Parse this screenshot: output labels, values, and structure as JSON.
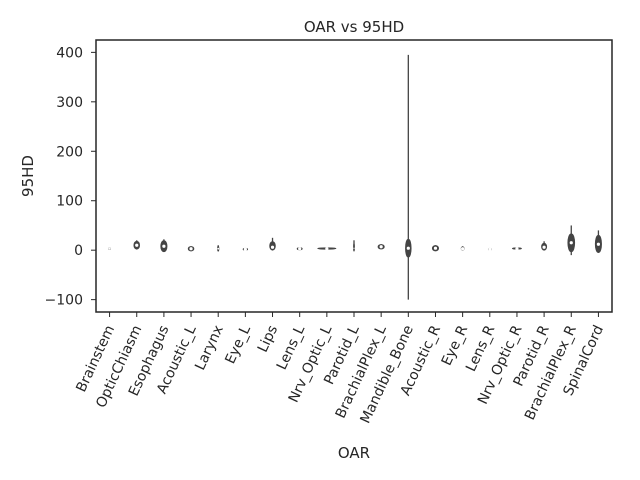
{
  "chart_data": {
    "type": "violin",
    "title": "OAR vs 95HD",
    "xlabel": "OAR",
    "ylabel": "95HD",
    "ylim": [
      -125,
      425
    ],
    "yticks": [
      -100,
      0,
      100,
      200,
      300,
      400
    ],
    "ytick_labels": [
      "−100",
      "0",
      "100",
      "200",
      "300",
      "400"
    ],
    "grid": false,
    "color": "#444444",
    "categories": [
      "Brainstem",
      "OpticChiasm",
      "Esophagus",
      "Acoustic_L",
      "Larynx",
      "Eye_L",
      "Lips",
      "Lens_L",
      "Nrv_Optic_L",
      "Parotid_L",
      "BrachialPlex_L",
      "Mandible_Bone",
      "Acoustic_R",
      "Eye_R",
      "Lens_R",
      "Nrv_Optic_R",
      "Parotid_R",
      "BrachialPlex_R",
      "SpinalCord"
    ],
    "violins": [
      {
        "min": 1,
        "max": 5,
        "median": 3,
        "width": 0.15
      },
      {
        "min": 2,
        "max": 20,
        "median": 10,
        "width": 0.5
      },
      {
        "min": -3,
        "max": 22,
        "median": 8,
        "width": 0.55
      },
      {
        "min": -2,
        "max": 8,
        "median": 3,
        "width": 0.5
      },
      {
        "min": -2,
        "max": 10,
        "median": 3,
        "width": 0.12
      },
      {
        "min": 0,
        "max": 4,
        "median": 2,
        "width": 0.4
      },
      {
        "min": 0,
        "max": 25,
        "median": 6,
        "width": 0.5
      },
      {
        "min": 0,
        "max": 5,
        "median": 3,
        "width": 0.45
      },
      {
        "min": 2,
        "max": 5,
        "median": 3,
        "width": 1.6
      },
      {
        "min": -2,
        "max": 20,
        "median": 4,
        "width": 0.08
      },
      {
        "min": 2,
        "max": 12,
        "median": 7,
        "width": 0.55
      },
      {
        "min": -100,
        "max": 395,
        "median": 4,
        "width": 0.5
      },
      {
        "min": -2,
        "max": 10,
        "median": 4,
        "width": 0.55
      },
      {
        "min": 0,
        "max": 8,
        "median": 3,
        "width": 0.25
      },
      {
        "min": 0,
        "max": 4,
        "median": 2,
        "width": 0.25
      },
      {
        "min": 2,
        "max": 5,
        "median": 3,
        "width": 0.8
      },
      {
        "min": 0,
        "max": 18,
        "median": 6,
        "width": 0.45
      },
      {
        "min": -10,
        "max": 50,
        "median": 15,
        "width": 0.6
      },
      {
        "min": -5,
        "max": 40,
        "median": 12,
        "width": 0.55
      }
    ]
  }
}
